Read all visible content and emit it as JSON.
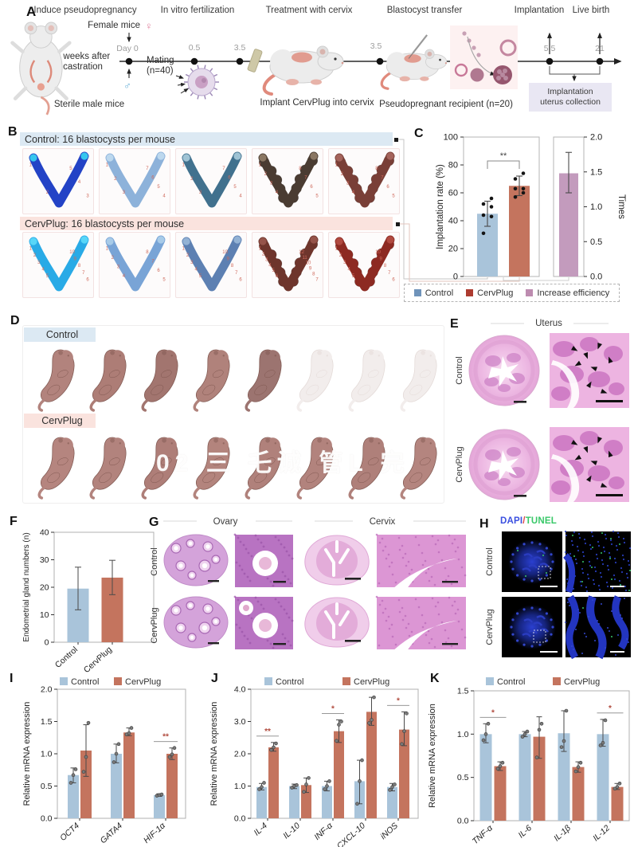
{
  "theme": {
    "band_blue": "#dce9f3",
    "band_pink": "#fae3de",
    "bar_blue": "#a9c4da",
    "bar_red": "#c4745e",
    "bar_mauve": "#c39bbd",
    "dapi_blue": "#3b50e0",
    "tunel_green": "#38c868",
    "slash_red": "#e04848",
    "site_number_red": "#cf6a5c"
  },
  "panels": {
    "a": {
      "label": "A",
      "phases": [
        "Induce pseudopregnancy",
        "In vitro fertilization",
        "Treatment with cervix",
        "Blastocyst transfer",
        "Implantation",
        "Live birth"
      ],
      "day0": "Day 0",
      "ticks": [
        "0.5",
        "3.5",
        "3.5",
        "5.5",
        "21"
      ],
      "female_mice": "Female mice",
      "female_symbol": "♀",
      "male_symbol": "♂",
      "castration_1": "2 weeks after",
      "castration_2": "castration",
      "sterile": "Sterile male mice",
      "mating_1": "Mating",
      "mating_2": "(n=40)",
      "implant_caption": "Implant CervPlug into cervix",
      "recipient_caption": "Pseudopregnant recipient (n=20)",
      "collection_1": "Implantation",
      "collection_2": "uterus collection"
    },
    "b": {
      "label": "B",
      "control_header": "Control: 16 blastocysts per mouse",
      "cervplug_header": "CervPlug: 16 blastocysts per mouse",
      "control_uteri": [
        {
          "color": "#2343c6",
          "tip": "#36c6ee",
          "count": 5,
          "beads": false
        },
        {
          "color": "#8db2da",
          "tip": "#bcd8ee",
          "count": 7,
          "beads": false
        },
        {
          "color": "#41718e",
          "tip": "#9fc3d4",
          "count": 7,
          "beads": false
        },
        {
          "color": "#4a3c32",
          "tip": "#8a7763",
          "count": 8,
          "beads": true
        },
        {
          "color": "#793f37",
          "tip": "#a4645c",
          "count": 8,
          "beads": true
        }
      ],
      "cervplug_uteri": [
        {
          "color": "#29aae6",
          "tip": "#58d6f8",
          "count": 10,
          "beads": false
        },
        {
          "color": "#79a4d6",
          "tip": "#a8cbe8",
          "count": 8,
          "beads": false
        },
        {
          "color": "#5d80b2",
          "tip": "#93b2d4",
          "count": 10,
          "beads": false
        },
        {
          "color": "#6e352c",
          "tip": "#95544a",
          "count": 12,
          "beads": true
        },
        {
          "color": "#8d2a22",
          "tip": "#b04a40",
          "count": 10,
          "beads": true
        }
      ]
    },
    "c": {
      "label": "C"
    },
    "d": {
      "label": "D",
      "control": "Control",
      "cervplug": "CervPlug",
      "row1_solid": 5,
      "row1_faded": 3,
      "row2_solid": 8,
      "watermark": "02 三 乇诚 管L 完"
    },
    "e": {
      "label": "E",
      "title": "Uterus",
      "rows": [
        "Control",
        "CervPlug"
      ]
    },
    "f": {
      "label": "F"
    },
    "g": {
      "label": "G",
      "columns": [
        "Ovary",
        "Cervix"
      ],
      "rows": [
        "Control",
        "CervPlug"
      ]
    },
    "h": {
      "label": "H",
      "title_dapi": "DAPI",
      "title_slash": "/",
      "title_tunel": "TUNEL",
      "rows": [
        "Control",
        "CervPlug"
      ]
    },
    "i": {
      "label": "I"
    },
    "j": {
      "label": "J"
    },
    "k": {
      "label": "K"
    }
  },
  "chart_data": {
    "C": {
      "type": "bar",
      "legend": [
        {
          "label": "Control",
          "color": "#6f93ba"
        },
        {
          "label": "CervPlug",
          "color": "#ad3b30"
        },
        {
          "label": "Increase efficiency",
          "color": "#bd8cb0"
        }
      ],
      "implantation": {
        "ylabel": "Implantation rate (%)",
        "ylim": [
          0,
          100
        ],
        "yticks": [
          0,
          20,
          40,
          60,
          80,
          100
        ],
        "decimals": 0,
        "categories": [
          "Control",
          "CervPlug"
        ],
        "values": [
          45,
          65
        ],
        "colors": [
          "#a9c4da",
          "#c4745e"
        ],
        "errors": [
          [
            36,
            54
          ],
          [
            58,
            72
          ]
        ],
        "dots": [
          [
            31,
            43,
            44,
            50,
            52,
            56
          ],
          [
            57,
            60,
            63,
            63,
            70,
            74
          ]
        ],
        "sig": "**"
      },
      "efficiency": {
        "ylabel": "Times",
        "ylim": [
          0,
          2
        ],
        "yticks": [
          0,
          0.5,
          1,
          1.5,
          2
        ],
        "decimals": 1,
        "categories": [
          "Increase efficiency"
        ],
        "values": [
          1.48
        ],
        "colors": [
          "#c39bbd"
        ],
        "errors": [
          [
            1.2,
            1.78
          ]
        ]
      }
    },
    "F": {
      "type": "bar",
      "ylabel": "Endometrial gland numbers (n)",
      "ylim": [
        0,
        40
      ],
      "yticks": [
        0,
        10,
        20,
        30,
        40
      ],
      "decimals": 0,
      "categories": [
        "Control",
        "CervPlug"
      ],
      "values": [
        19.5,
        23.5
      ],
      "colors": [
        "#a9c4da",
        "#c4745e"
      ],
      "errors": [
        [
          11.8,
          27.3
        ],
        [
          17.3,
          29.8
        ]
      ]
    },
    "I": {
      "type": "grouped-bar",
      "ylabel": "Relative mRNA expression",
      "ylim": [
        0,
        2
      ],
      "yticks": [
        0,
        0.5,
        1,
        1.5,
        2
      ],
      "decimals": 1,
      "categories": [
        "OCT4",
        "GATA4",
        "HIF-1α"
      ],
      "series": [
        {
          "name": "Control",
          "color": "#a9c4da",
          "values": [
            0.67,
            1,
            0.36
          ],
          "errors": [
            [
              0.55,
              0.78
            ],
            [
              0.86,
              1.15
            ],
            [
              0.34,
              0.38
            ]
          ],
          "dots": [
            [
              0.55,
              0.67,
              0.76
            ],
            [
              0.87,
              1,
              1.15
            ],
            [
              0.35,
              0.36,
              0.37
            ]
          ]
        },
        {
          "name": "CervPlug",
          "color": "#c4745e",
          "values": [
            1.05,
            1.33,
            1
          ],
          "errors": [
            [
              0.65,
              1.45
            ],
            [
              1.28,
              1.4
            ],
            [
              0.91,
              1.09
            ]
          ],
          "dots": [
            [
              0.72,
              0.95,
              1.48
            ],
            [
              1.3,
              1.32,
              1.4
            ],
            [
              0.95,
              0.99,
              1.09
            ]
          ]
        }
      ],
      "sig": [
        {
          "category": "HIF-1α",
          "label": "**"
        }
      ]
    },
    "J": {
      "type": "grouped-bar",
      "ylabel": "Relative mRNA expression",
      "ylim": [
        0,
        4
      ],
      "yticks": [
        0,
        1,
        2,
        3,
        4
      ],
      "decimals": 1,
      "categories": [
        "IL-4",
        "IL-10",
        "INF-α",
        "CXCL-10",
        "iNOS"
      ],
      "series": [
        {
          "name": "Control",
          "color": "#a9c4da",
          "values": [
            0.97,
            1,
            1,
            1.15,
            0.97
          ],
          "errors": [
            [
              0.88,
              1.08
            ],
            [
              0.92,
              1.06
            ],
            [
              0.85,
              1.15
            ],
            [
              0.45,
              1.8
            ],
            [
              0.85,
              1.08
            ]
          ],
          "dots": [
            [
              0.9,
              0.97,
              1.1
            ],
            [
              0.95,
              1,
              1.03
            ],
            [
              0.9,
              1,
              1.15
            ],
            [
              0.45,
              1.15,
              1.8
            ],
            [
              0.88,
              0.97,
              1.05
            ]
          ]
        },
        {
          "name": "CervPlug",
          "color": "#c4745e",
          "values": [
            2.2,
            1.03,
            2.7,
            3.3,
            2.75
          ],
          "errors": [
            [
              2.08,
              2.35
            ],
            [
              0.8,
              1.25
            ],
            [
              2.35,
              3.05
            ],
            [
              2.88,
              3.75
            ],
            [
              2.25,
              3.3
            ]
          ],
          "dots": [
            [
              2.12,
              2.2,
              2.32
            ],
            [
              0.82,
              1.05,
              1.25
            ],
            [
              2.4,
              2.9,
              3
            ],
            [
              2.95,
              3.05,
              3.75
            ],
            [
              2.3,
              2.7,
              3.25
            ]
          ]
        }
      ],
      "sig": [
        {
          "category": "IL-4",
          "label": "**"
        },
        {
          "category": "INF-α",
          "label": "*"
        },
        {
          "category": "iNOS",
          "label": "*"
        }
      ]
    },
    "K": {
      "type": "grouped-bar",
      "ylabel": "Relative mRNA expression",
      "ylim": [
        0,
        1.5
      ],
      "yticks": [
        0,
        0.5,
        1,
        1.5
      ],
      "decimals": 1,
      "categories": [
        "TNF-α",
        "IL-6",
        "IL-1β",
        "IL-12"
      ],
      "series": [
        {
          "name": "Control",
          "color": "#a9c4da",
          "values": [
            1,
            1,
            1.01,
            1
          ],
          "errors": [
            [
              0.9,
              1.12
            ],
            [
              0.97,
              1.03
            ],
            [
              0.8,
              1.27
            ],
            [
              0.86,
              1.17
            ]
          ],
          "dots": [
            [
              0.93,
              1,
              1.12
            ],
            [
              0.97,
              1,
              1.03
            ],
            [
              0.85,
              0.92,
              1.27
            ],
            [
              0.87,
              0.9,
              1.16
            ]
          ]
        },
        {
          "name": "CervPlug",
          "color": "#c4745e",
          "values": [
            0.63,
            0.97,
            0.62,
            0.39
          ],
          "errors": [
            [
              0.58,
              0.68
            ],
            [
              0.72,
              1.2
            ],
            [
              0.56,
              0.68
            ],
            [
              0.36,
              0.43
            ]
          ],
          "dots": [
            [
              0.6,
              0.63,
              0.67
            ],
            [
              0.73,
              1.05,
              1.12
            ],
            [
              0.57,
              0.62,
              0.67
            ],
            [
              0.37,
              0.39,
              0.43
            ]
          ]
        }
      ],
      "sig": [
        {
          "category": "TNF-α",
          "label": "*"
        },
        {
          "category": "IL-12",
          "label": "*"
        }
      ]
    }
  }
}
